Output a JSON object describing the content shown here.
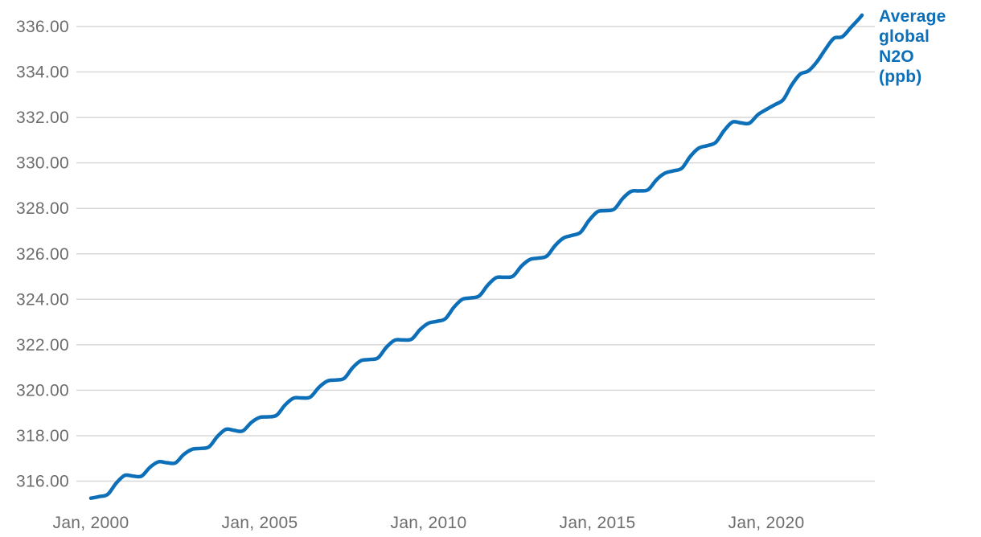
{
  "chart_data": {
    "type": "line",
    "title": "",
    "xlabel": "",
    "ylabel": "",
    "grid": "horizontal-only",
    "legend": {
      "label": "Average global N2O (ppb)",
      "position": "top-right-at-line-end"
    },
    "y_axis": {
      "min": 316,
      "max": 336,
      "step": 2,
      "ticks": [
        {
          "value": 336,
          "label": "336.00"
        },
        {
          "value": 334,
          "label": "334.00"
        },
        {
          "value": 332,
          "label": "332.00"
        },
        {
          "value": 330,
          "label": "330.00"
        },
        {
          "value": 328,
          "label": "328.00"
        },
        {
          "value": 326,
          "label": "326.00"
        },
        {
          "value": 324,
          "label": "324.00"
        },
        {
          "value": 322,
          "label": "322.00"
        },
        {
          "value": 320,
          "label": "320.00"
        },
        {
          "value": 318,
          "label": "318.00"
        },
        {
          "value": 316,
          "label": "316.00"
        }
      ]
    },
    "x_axis": {
      "start": "2000-01",
      "end": "2022-11",
      "ticks": [
        {
          "year": 2000,
          "label": "Jan, 2000"
        },
        {
          "year": 2005,
          "label": "Jan, 2005"
        },
        {
          "year": 2010,
          "label": "Jan, 2010"
        },
        {
          "year": 2015,
          "label": "Jan, 2015"
        },
        {
          "year": 2020,
          "label": "Jan, 2020"
        }
      ]
    },
    "series": [
      {
        "name": "Average global N2O (ppb)",
        "color": "#0d6fb8",
        "points": [
          [
            "2000-01",
            315.25
          ],
          [
            "2000-04",
            315.32
          ],
          [
            "2000-07",
            315.42
          ],
          [
            "2000-10",
            315.91
          ],
          [
            "2001-01",
            316.25
          ],
          [
            "2001-04",
            316.22
          ],
          [
            "2001-07",
            316.22
          ],
          [
            "2001-10",
            316.61
          ],
          [
            "2002-01",
            316.85
          ],
          [
            "2002-04",
            316.81
          ],
          [
            "2002-07",
            316.8
          ],
          [
            "2002-10",
            317.17
          ],
          [
            "2003-01",
            317.4
          ],
          [
            "2003-04",
            317.44
          ],
          [
            "2003-07",
            317.51
          ],
          [
            "2003-10",
            317.97
          ],
          [
            "2004-01",
            318.28
          ],
          [
            "2004-04",
            318.23
          ],
          [
            "2004-07",
            318.21
          ],
          [
            "2004-10",
            318.58
          ],
          [
            "2005-01",
            318.8
          ],
          [
            "2005-04",
            318.83
          ],
          [
            "2005-07",
            318.9
          ],
          [
            "2005-10",
            319.35
          ],
          [
            "2006-01",
            319.65
          ],
          [
            "2006-04",
            319.66
          ],
          [
            "2006-07",
            319.7
          ],
          [
            "2006-10",
            320.12
          ],
          [
            "2007-01",
            320.4
          ],
          [
            "2007-04",
            320.45
          ],
          [
            "2007-07",
            320.52
          ],
          [
            "2007-10",
            320.99
          ],
          [
            "2008-01",
            321.3
          ],
          [
            "2008-04",
            321.35
          ],
          [
            "2008-07",
            321.42
          ],
          [
            "2008-10",
            321.89
          ],
          [
            "2009-01",
            322.2
          ],
          [
            "2009-04",
            322.21
          ],
          [
            "2009-07",
            322.25
          ],
          [
            "2009-10",
            322.67
          ],
          [
            "2010-01",
            322.95
          ],
          [
            "2010-04",
            323.03
          ],
          [
            "2010-07",
            323.15
          ],
          [
            "2010-10",
            323.65
          ],
          [
            "2011-01",
            324.0
          ],
          [
            "2011-04",
            324.06
          ],
          [
            "2011-07",
            324.15
          ],
          [
            "2011-10",
            324.62
          ],
          [
            "2012-01",
            324.95
          ],
          [
            "2012-04",
            324.97
          ],
          [
            "2012-07",
            325.02
          ],
          [
            "2012-10",
            325.46
          ],
          [
            "2013-01",
            325.75
          ],
          [
            "2013-04",
            325.81
          ],
          [
            "2013-07",
            325.9
          ],
          [
            "2013-10",
            326.37
          ],
          [
            "2014-01",
            326.7
          ],
          [
            "2014-04",
            326.81
          ],
          [
            "2014-07",
            326.95
          ],
          [
            "2014-10",
            327.47
          ],
          [
            "2015-01",
            327.85
          ],
          [
            "2015-04",
            327.9
          ],
          [
            "2015-07",
            327.97
          ],
          [
            "2015-10",
            328.44
          ],
          [
            "2016-01",
            328.75
          ],
          [
            "2016-04",
            328.77
          ],
          [
            "2016-07",
            328.82
          ],
          [
            "2016-10",
            329.26
          ],
          [
            "2017-01",
            329.55
          ],
          [
            "2017-04",
            329.65
          ],
          [
            "2017-07",
            329.77
          ],
          [
            "2017-10",
            330.29
          ],
          [
            "2018-01",
            330.65
          ],
          [
            "2018-04",
            330.76
          ],
          [
            "2018-07",
            330.9
          ],
          [
            "2018-10",
            331.42
          ],
          [
            "2019-01",
            331.8
          ],
          [
            "2019-04",
            331.76
          ],
          [
            "2019-07",
            331.75
          ],
          [
            "2019-10",
            332.12
          ],
          [
            "2020-01",
            332.35
          ],
          [
            "2020-04",
            332.56
          ],
          [
            "2020-07",
            332.78
          ],
          [
            "2020-10",
            333.42
          ],
          [
            "2021-01",
            333.9
          ],
          [
            "2021-04",
            334.05
          ],
          [
            "2021-07",
            334.45
          ],
          [
            "2021-10",
            335.0
          ],
          [
            "2022-01",
            335.48
          ],
          [
            "2022-04",
            335.55
          ],
          [
            "2022-07",
            335.95
          ],
          [
            "2022-10",
            336.35
          ],
          [
            "2022-11",
            336.5
          ]
        ]
      }
    ]
  },
  "colors": {
    "line": "#0d6fb8",
    "legend_text": "#0d6fb8",
    "grid": "#d7d7d7",
    "axis_text": "#6d6d6d",
    "background": "#ffffff"
  }
}
